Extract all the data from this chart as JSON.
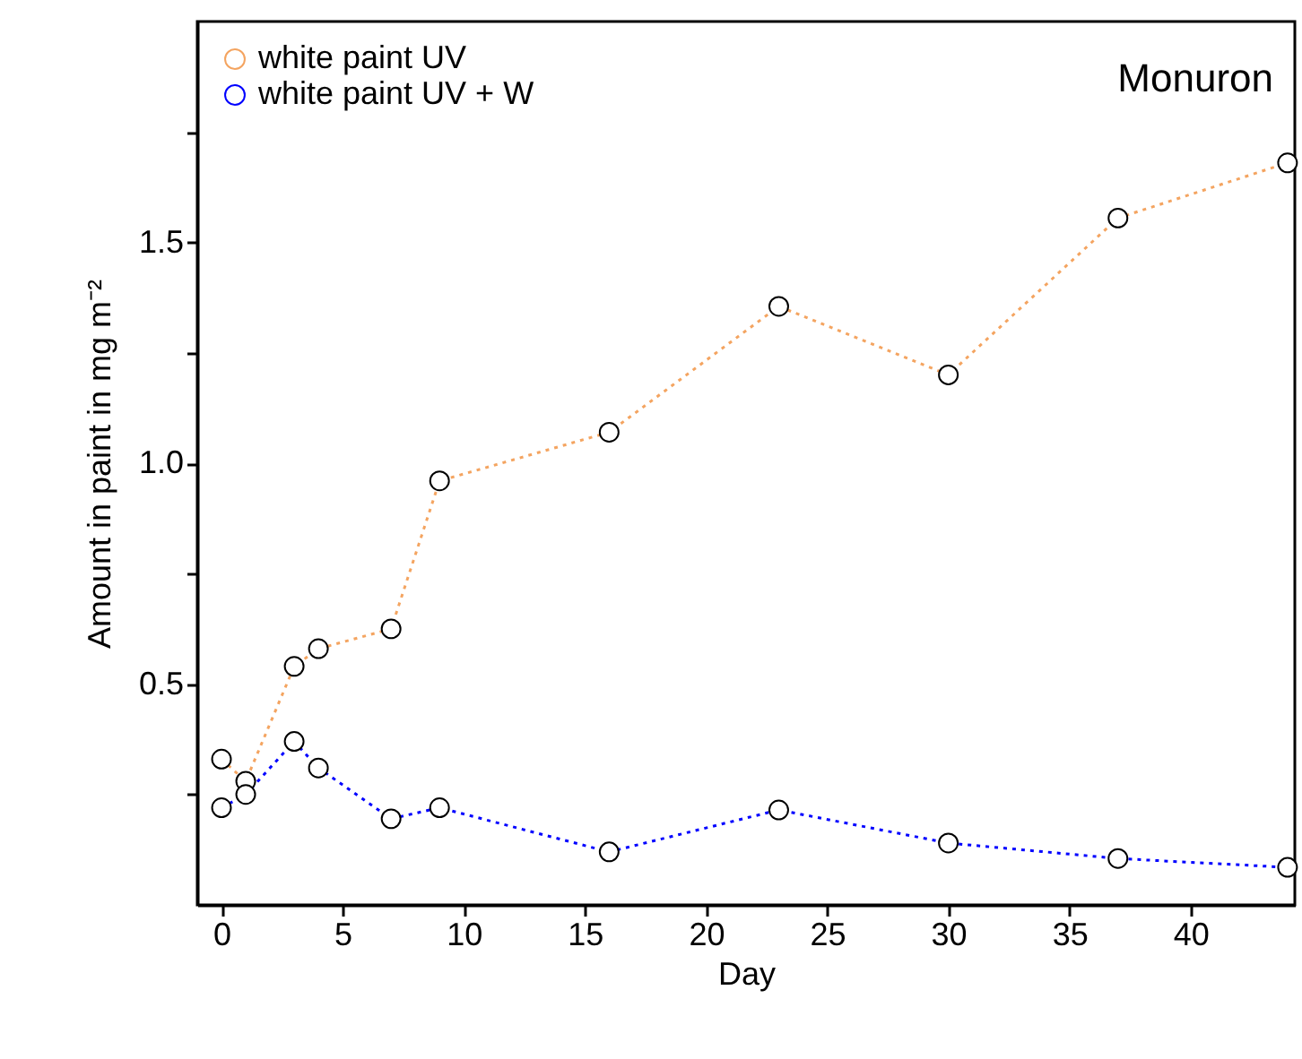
{
  "chart_data": {
    "type": "line",
    "xlabel": "Day",
    "ylabel": "Amount in paint in mg m⁻²",
    "annotations": [
      "Monuron"
    ],
    "x": [
      0,
      1,
      3,
      4,
      7,
      9,
      16,
      23,
      30,
      37,
      44
    ],
    "series": [
      {
        "name": "white paint UV",
        "color": "#f4a460",
        "values": [
          0.33,
          0.28,
          0.54,
          0.58,
          0.625,
          0.96,
          1.07,
          1.355,
          1.2,
          1.555,
          1.68
        ]
      },
      {
        "name": "white paint UV + W",
        "color": "#0000ff",
        "values": [
          0.22,
          0.25,
          0.37,
          0.31,
          0.195,
          0.22,
          0.12,
          0.215,
          0.14,
          0.105,
          0.085
        ]
      }
    ],
    "xlim": [
      -1,
      44.3
    ],
    "ylim": [
      0,
      2
    ],
    "xticks": [
      0,
      5,
      10,
      15,
      20,
      25,
      30,
      35,
      40
    ],
    "yticks": [
      {
        "value": 0.25,
        "label": null
      },
      0.5,
      {
        "value": 0.75,
        "label": null
      },
      {
        "value": 1.0,
        "label": "1.0"
      },
      {
        "value": 1.25,
        "label": null
      },
      1.5,
      {
        "value": 1.75,
        "label": null
      }
    ],
    "grid": false,
    "legend": "top left",
    "marker": "circle",
    "line_style": "dotted"
  }
}
